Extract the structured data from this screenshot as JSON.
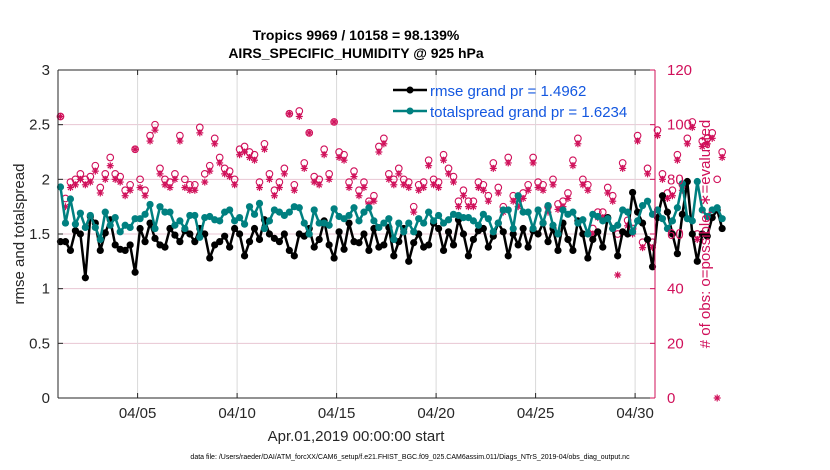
{
  "chart_data": {
    "type": "line",
    "title": "Tropics 9969 / 10158 = 98.139%",
    "subtitle": "AIRS_SPECIFIC_HUMIDITY @ 925 hPa",
    "xlabel": "Apr.01,2019 00:00:00 start",
    "ylabel": "rmse and totalspread",
    "ylabel_right": "# of obs: o=possible; ∗=evaluated",
    "footnote": "data file: /Users/raeder/DAI/ATM_forcXX/CAM6_setup/f.e21.FHIST_BGC.f09_025.CAM6assim.011/Diags_NTrS_2019-04/obs_diag_output.nc",
    "x_unit": "days since Apr.01,2019 00:00:00",
    "xlim": [
      0,
      30
    ],
    "x_ticks": [
      4,
      9,
      14,
      19,
      24,
      29
    ],
    "x_tick_labels": [
      "04/05",
      "04/10",
      "04/15",
      "04/20",
      "04/25",
      "04/30"
    ],
    "ylim": [
      0,
      3
    ],
    "y_ticks": [
      0,
      0.5,
      1,
      1.5,
      2,
      2.5,
      3
    ],
    "y_tick_labels": [
      "0",
      "0.5",
      "1",
      "1.5",
      "2",
      "2.5",
      "3"
    ],
    "ylim_right": [
      0,
      120
    ],
    "y_ticks_right": [
      0,
      20,
      40,
      60,
      80,
      100,
      120
    ],
    "y_tick_labels_right": [
      "0",
      "20",
      "40",
      "60",
      "80",
      "100",
      "120"
    ],
    "grid": true,
    "legend_position": "top-right",
    "colors": {
      "rmse": "#000000",
      "totalspread": "#008080",
      "obs": "#d0105a",
      "legend_text": "#1357e0",
      "grid": "#e8c6d3",
      "vgrid": "#d9d9d9"
    },
    "x_step_days": 0.25,
    "series": [
      {
        "name": "rmse grand pr = 1.4962",
        "axis": "left",
        "values": [
          1.43,
          1.43,
          1.35,
          1.53,
          1.5,
          1.1,
          1.66,
          1.6,
          1.35,
          1.51,
          1.63,
          1.4,
          1.36,
          1.35,
          1.4,
          1.15,
          1.55,
          1.43,
          1.6,
          1.46,
          1.4,
          1.38,
          1.55,
          1.49,
          1.43,
          1.53,
          1.5,
          1.43,
          1.55,
          1.5,
          1.28,
          1.4,
          1.43,
          1.48,
          1.38,
          1.55,
          1.5,
          1.3,
          1.43,
          1.55,
          1.45,
          1.63,
          1.5,
          1.46,
          1.43,
          1.5,
          1.35,
          1.3,
          1.5,
          1.48,
          1.55,
          1.38,
          1.45,
          1.62,
          1.4,
          1.28,
          1.52,
          1.36,
          1.6,
          1.43,
          1.42,
          1.5,
          1.35,
          1.55,
          1.38,
          1.4,
          1.56,
          1.3,
          1.43,
          1.55,
          1.25,
          1.42,
          1.5,
          1.38,
          1.4,
          1.6,
          1.55,
          1.35,
          1.52,
          1.4,
          1.63,
          1.5,
          1.3,
          1.45,
          1.53,
          1.55,
          1.38,
          1.48,
          1.6,
          1.52,
          1.3,
          1.5,
          1.4,
          1.55,
          1.38,
          1.53,
          1.5,
          1.6,
          1.43,
          1.55,
          1.35,
          1.6,
          1.45,
          1.35,
          1.62,
          1.5,
          1.28,
          1.45,
          1.52,
          1.38,
          1.65,
          1.55,
          1.3,
          1.52,
          1.5,
          1.88,
          1.7,
          1.6,
          1.45,
          1.2,
          1.65,
          1.85,
          1.7,
          1.5,
          1.32,
          1.68,
          1.98,
          1.5,
          1.25,
          1.5,
          1.48,
          1.65,
          1.72,
          1.55
        ]
      },
      {
        "name": "totalspread grand pr = 1.6234",
        "axis": "left",
        "values": [
          1.93,
          1.6,
          1.82,
          1.59,
          1.69,
          1.56,
          1.67,
          1.56,
          1.45,
          1.7,
          1.58,
          1.65,
          1.52,
          1.58,
          1.56,
          1.64,
          1.64,
          1.68,
          1.77,
          1.55,
          1.75,
          1.7,
          1.7,
          1.58,
          1.62,
          1.55,
          1.67,
          1.67,
          1.47,
          1.65,
          1.66,
          1.63,
          1.62,
          1.7,
          1.72,
          1.62,
          1.65,
          1.59,
          1.75,
          1.68,
          1.78,
          1.55,
          1.62,
          1.72,
          1.7,
          1.67,
          1.7,
          1.75,
          1.74,
          1.6,
          1.5,
          1.72,
          1.6,
          1.6,
          1.58,
          1.73,
          1.66,
          1.64,
          1.67,
          1.74,
          1.62,
          1.7,
          1.74,
          1.62,
          1.56,
          1.6,
          1.64,
          1.45,
          1.6,
          1.52,
          1.6,
          1.52,
          1.64,
          1.6,
          1.7,
          1.62,
          1.67,
          1.6,
          1.63,
          1.68,
          1.67,
          1.65,
          1.65,
          1.62,
          1.58,
          1.68,
          1.64,
          1.52,
          1.6,
          1.72,
          1.72,
          1.55,
          1.85,
          1.7,
          1.7,
          1.55,
          1.72,
          1.6,
          1.76,
          1.58,
          1.5,
          1.72,
          1.68,
          1.7,
          1.6,
          1.63,
          1.5,
          1.68,
          1.66,
          1.62,
          1.64,
          1.55,
          1.58,
          1.72,
          1.7,
          1.52,
          1.62,
          1.76,
          1.8,
          1.68,
          1.72,
          1.64,
          1.55,
          1.62,
          1.74,
          1.96,
          1.64,
          1.62,
          1.98,
          1.72,
          1.66,
          1.72,
          1.74,
          1.64
        ]
      },
      {
        "name": "obs possible",
        "axis": "right",
        "marker": "o",
        "values": [
          103,
          73,
          79,
          80,
          82,
          80,
          81,
          85,
          77,
          82,
          88,
          82,
          81,
          76,
          78,
          91,
          80,
          76,
          96,
          100,
          84,
          80,
          79,
          82,
          96,
          80,
          78,
          78,
          99,
          82,
          85,
          95,
          88,
          84,
          83,
          80,
          91,
          92,
          90,
          89,
          79,
          93,
          82,
          76,
          79,
          84,
          104,
          78,
          105,
          86,
          97,
          81,
          80,
          91,
          82,
          101,
          90,
          89,
          79,
          83,
          76,
          79,
          72,
          74,
          92,
          95,
          82,
          80,
          84,
          80,
          79,
          70,
          78,
          79,
          87,
          80,
          79,
          89,
          84,
          81,
          72,
          76,
          72,
          72,
          79,
          78,
          74,
          86,
          77,
          70,
          88,
          74,
          72,
          75,
          78,
          88,
          79,
          78,
          70,
          80,
          71,
          72,
          75,
          87,
          95,
          80,
          78,
          62,
          68,
          68,
          77,
          74,
          60,
          86,
          65,
          62,
          96,
          57,
          84,
          57,
          98,
          82,
          75,
          76,
          89,
          78,
          95,
          101,
          60,
          94,
          95,
          97,
          80,
          90
        ]
      },
      {
        "name": "obs evaluated",
        "axis": "right",
        "marker": "*",
        "values": [
          103,
          70,
          77,
          78,
          80,
          78,
          79,
          83,
          75,
          80,
          85,
          80,
          79,
          74,
          76,
          91,
          77,
          74,
          94,
          98,
          82,
          78,
          77,
          80,
          94,
          77,
          76,
          76,
          97,
          79,
          83,
          93,
          86,
          82,
          81,
          78,
          89,
          90,
          88,
          87,
          77,
          91,
          80,
          74,
          77,
          82,
          104,
          76,
          103,
          84,
          97,
          79,
          78,
          89,
          80,
          101,
          88,
          87,
          77,
          81,
          74,
          77,
          71,
          72,
          90,
          93,
          80,
          78,
          82,
          78,
          77,
          68,
          76,
          77,
          85,
          78,
          77,
          87,
          82,
          79,
          70,
          74,
          70,
          70,
          77,
          76,
          72,
          84,
          75,
          68,
          86,
          72,
          70,
          73,
          76,
          86,
          77,
          76,
          68,
          78,
          69,
          70,
          73,
          85,
          93,
          78,
          76,
          60,
          66,
          66,
          75,
          72,
          45,
          84,
          63,
          60,
          94,
          55,
          82,
          55,
          96,
          80,
          73,
          74,
          87,
          76,
          93,
          99,
          58,
          92,
          93,
          95,
          0,
          88
        ]
      }
    ]
  }
}
